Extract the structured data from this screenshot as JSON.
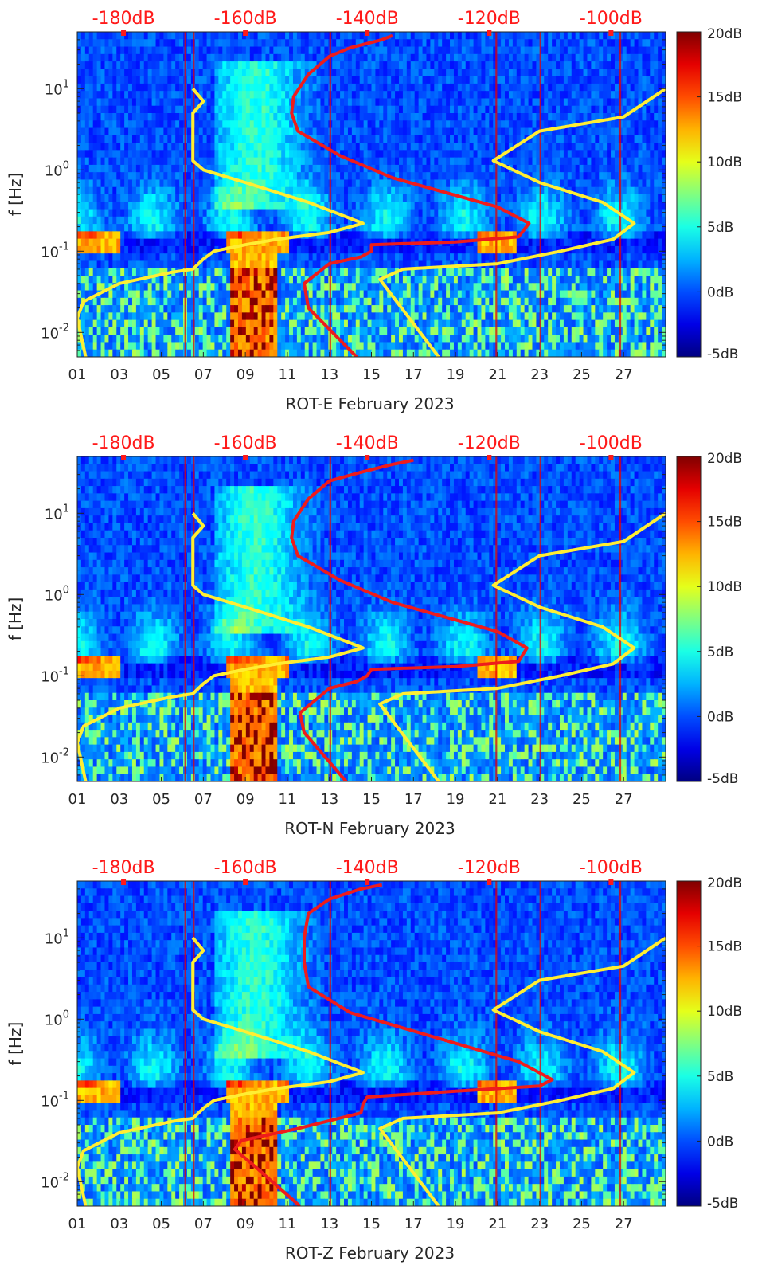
{
  "figure": {
    "colors": {
      "top_axis_text": "#ff1a1a",
      "curve_red": "#ee1c1c",
      "curve_yellow": "#ffee33",
      "axis": "#222222"
    },
    "colorbar": {
      "colormap": "jet",
      "ticks": [
        "20dB",
        "15dB",
        "10dB",
        "5dB",
        "0dB",
        "-5dB"
      ]
    }
  },
  "chart_data": [
    {
      "type": "heatmap",
      "xlabel": "ROT-E February 2023",
      "ylabel": "f [Hz]",
      "x_tick_labels": [
        "01",
        "03",
        "05",
        "07",
        "09",
        "11",
        "13",
        "15",
        "17",
        "19",
        "21",
        "23",
        "25",
        "27"
      ],
      "y_tick_labels": [
        "10-2",
        "10-1",
        "100",
        "101"
      ],
      "yscale": "log",
      "ylim": [
        0.005,
        50
      ],
      "xlim": [
        1,
        29
      ],
      "clim": [
        -5,
        20
      ],
      "top_tick_labels": [
        "-180dB",
        "-160dB",
        "-140dB",
        "-120dB",
        "-100dB"
      ],
      "colorbar_ticks": [
        "20dB",
        "15dB",
        "10dB",
        "5dB",
        "0dB",
        "-5dB"
      ],
      "series": [
        {
          "color": "#ffee33",
          "x": [
            1.4,
            1.0,
            1.3,
            3.0,
            5.5,
            6.5,
            7.0,
            7.5,
            9.0,
            10.5,
            13.0,
            14.6,
            12.0,
            9.0,
            7.0,
            6.5,
            6.5,
            7.0,
            6.5
          ],
          "y": [
            0.005,
            0.015,
            0.024,
            0.04,
            0.055,
            0.06,
            0.08,
            0.1,
            0.12,
            0.14,
            0.17,
            0.22,
            0.4,
            0.7,
            1.0,
            1.3,
            5,
            7,
            10
          ]
        },
        {
          "color": "#ffee33",
          "x": [
            18.2,
            15.4,
            16.5,
            21.0,
            24.0,
            26.5,
            27.5,
            26.0,
            23.0,
            20.8,
            23.0,
            27.0,
            29.0
          ],
          "y": [
            0.005,
            0.045,
            0.06,
            0.07,
            0.1,
            0.14,
            0.22,
            0.4,
            0.7,
            1.3,
            3,
            4.5,
            10
          ]
        },
        {
          "color": "#ee1c1c",
          "x": [
            14.3,
            12.0,
            11.8,
            13.0,
            14.5,
            15.0,
            15.0,
            19.0,
            22.0,
            22.5,
            21.0,
            16.0,
            13.5,
            11.5,
            11.2,
            11.3,
            12.0,
            13.0,
            14.0,
            15.5,
            16.0
          ],
          "y": [
            0.005,
            0.02,
            0.04,
            0.07,
            0.085,
            0.1,
            0.12,
            0.13,
            0.15,
            0.22,
            0.35,
            0.8,
            1.5,
            3,
            5,
            8,
            15,
            25,
            32,
            40,
            45
          ]
        }
      ]
    },
    {
      "type": "heatmap",
      "xlabel": "ROT-N February 2023",
      "ylabel": "f [Hz]",
      "x_tick_labels": [
        "01",
        "03",
        "05",
        "07",
        "09",
        "11",
        "13",
        "15",
        "17",
        "19",
        "21",
        "23",
        "25",
        "27"
      ],
      "y_tick_labels": [
        "10-2",
        "10-1",
        "100",
        "101"
      ],
      "yscale": "log",
      "ylim": [
        0.005,
        50
      ],
      "xlim": [
        1,
        29
      ],
      "clim": [
        -5,
        20
      ],
      "top_tick_labels": [
        "-180dB",
        "-160dB",
        "-140dB",
        "-120dB",
        "-100dB"
      ],
      "colorbar_ticks": [
        "20dB",
        "15dB",
        "10dB",
        "5dB",
        "0dB",
        "-5dB"
      ],
      "series": [
        {
          "color": "#ffee33",
          "x": [
            1.4,
            1.0,
            1.3,
            3.0,
            5.5,
            6.5,
            7.0,
            7.5,
            9.0,
            10.5,
            13.0,
            14.6,
            12.0,
            9.0,
            7.0,
            6.5,
            6.5,
            7.0,
            6.5
          ],
          "y": [
            0.005,
            0.015,
            0.024,
            0.04,
            0.055,
            0.06,
            0.08,
            0.1,
            0.12,
            0.14,
            0.17,
            0.22,
            0.4,
            0.7,
            1.0,
            1.3,
            5,
            7,
            10
          ]
        },
        {
          "color": "#ffee33",
          "x": [
            18.2,
            15.4,
            16.5,
            21.0,
            24.0,
            26.5,
            27.5,
            26.0,
            23.0,
            20.8,
            23.0,
            27.0,
            29.0
          ],
          "y": [
            0.005,
            0.045,
            0.06,
            0.07,
            0.1,
            0.14,
            0.22,
            0.4,
            0.7,
            1.3,
            3,
            4.5,
            10
          ]
        },
        {
          "color": "#ee1c1c",
          "x": [
            13.8,
            11.8,
            11.6,
            13.0,
            14.3,
            14.8,
            15.0,
            19.0,
            22.0,
            22.4,
            21.0,
            16.0,
            13.5,
            11.5,
            11.2,
            11.3,
            12.0,
            13.0,
            14.5,
            16.0,
            17.0
          ],
          "y": [
            0.005,
            0.02,
            0.035,
            0.07,
            0.085,
            0.1,
            0.12,
            0.13,
            0.15,
            0.22,
            0.35,
            0.8,
            1.5,
            3,
            5,
            8,
            15,
            25,
            32,
            40,
            45
          ]
        }
      ]
    },
    {
      "type": "heatmap",
      "xlabel": "ROT-Z February 2023",
      "ylabel": "f [Hz]",
      "x_tick_labels": [
        "01",
        "03",
        "05",
        "07",
        "09",
        "11",
        "13",
        "15",
        "17",
        "19",
        "21",
        "23",
        "25",
        "27"
      ],
      "y_tick_labels": [
        "10-2",
        "10-1",
        "100",
        "101"
      ],
      "yscale": "log",
      "ylim": [
        0.005,
        50
      ],
      "xlim": [
        1,
        29
      ],
      "clim": [
        -5,
        20
      ],
      "top_tick_labels": [
        "-180dB",
        "-160dB",
        "-140dB",
        "-120dB",
        "-100dB"
      ],
      "colorbar_ticks": [
        "20dB",
        "15dB",
        "10dB",
        "5dB",
        "0dB",
        "-5dB"
      ],
      "series": [
        {
          "color": "#ffee33",
          "x": [
            1.4,
            1.0,
            1.3,
            3.0,
            5.5,
            6.5,
            7.0,
            7.5,
            9.0,
            10.5,
            13.0,
            14.6,
            12.0,
            9.0,
            7.0,
            6.5,
            6.5,
            7.0,
            6.5
          ],
          "y": [
            0.005,
            0.015,
            0.024,
            0.04,
            0.055,
            0.06,
            0.08,
            0.1,
            0.12,
            0.14,
            0.17,
            0.22,
            0.4,
            0.7,
            1.0,
            1.3,
            5,
            7,
            10
          ]
        },
        {
          "color": "#ffee33",
          "x": [
            18.2,
            15.4,
            16.5,
            21.0,
            24.0,
            26.5,
            27.5,
            26.0,
            23.0,
            20.8,
            23.0,
            27.0,
            29.0
          ],
          "y": [
            0.005,
            0.045,
            0.06,
            0.07,
            0.1,
            0.14,
            0.22,
            0.4,
            0.7,
            1.3,
            3,
            4.5,
            10
          ]
        },
        {
          "color": "#ee1c1c",
          "x": [
            11.6,
            9.5,
            8.5,
            8.8,
            11.5,
            14.5,
            14.6,
            14.8,
            19.0,
            23.0,
            23.6,
            22.0,
            18.0,
            14.0,
            12.0,
            11.8,
            11.8,
            12.0,
            13.0,
            14.5,
            15.5
          ],
          "y": [
            0.005,
            0.015,
            0.025,
            0.032,
            0.045,
            0.07,
            0.09,
            0.11,
            0.13,
            0.15,
            0.18,
            0.3,
            0.6,
            1.2,
            2.5,
            5,
            10,
            20,
            30,
            40,
            45
          ]
        }
      ]
    }
  ]
}
